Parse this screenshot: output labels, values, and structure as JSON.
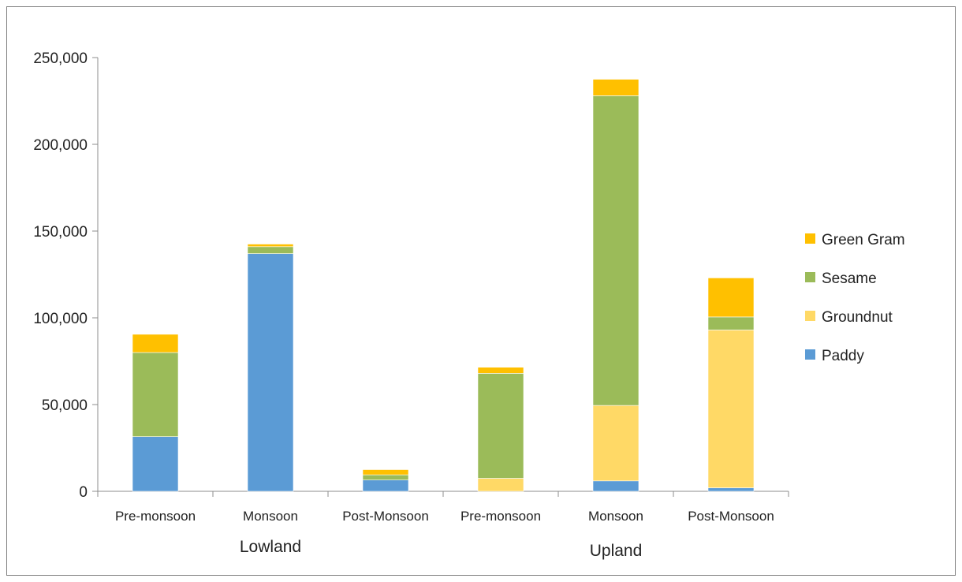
{
  "chart_data": {
    "type": "bar",
    "stacked": true,
    "title": "",
    "xlabel": "",
    "ylabel": "",
    "ylim": [
      0,
      250000
    ],
    "yticks": [
      0,
      50000,
      100000,
      150000,
      200000,
      250000
    ],
    "ytick_labels": [
      "0",
      "50,000",
      "100,000",
      "150,000",
      "200,000",
      "250,000"
    ],
    "grid": false,
    "legend_position": "right",
    "categories": [
      "Pre-monsoon",
      "Monsoon",
      "Post-Monsoon",
      "Pre-monsoon",
      "Monsoon",
      "Post-Monsoon"
    ],
    "groups": [
      {
        "label": "Lowland",
        "categories": [
          0,
          1,
          2
        ]
      },
      {
        "label": "Upland",
        "categories": [
          3,
          4,
          5
        ]
      }
    ],
    "series": [
      {
        "name": "Paddy",
        "color": "#5B9BD5",
        "values": [
          31500,
          137000,
          6500,
          0,
          6000,
          2000
        ]
      },
      {
        "name": "Groundnut",
        "color": "#FFD966",
        "values": [
          0,
          0,
          0,
          7500,
          43500,
          91000
        ]
      },
      {
        "name": "Sesame",
        "color": "#9BBB59",
        "values": [
          48500,
          4000,
          3000,
          60500,
          178500,
          7500
        ]
      },
      {
        "name": "Green Gram",
        "color": "#FFC000",
        "values": [
          10500,
          1500,
          3000,
          3500,
          9500,
          22500
        ]
      }
    ]
  }
}
